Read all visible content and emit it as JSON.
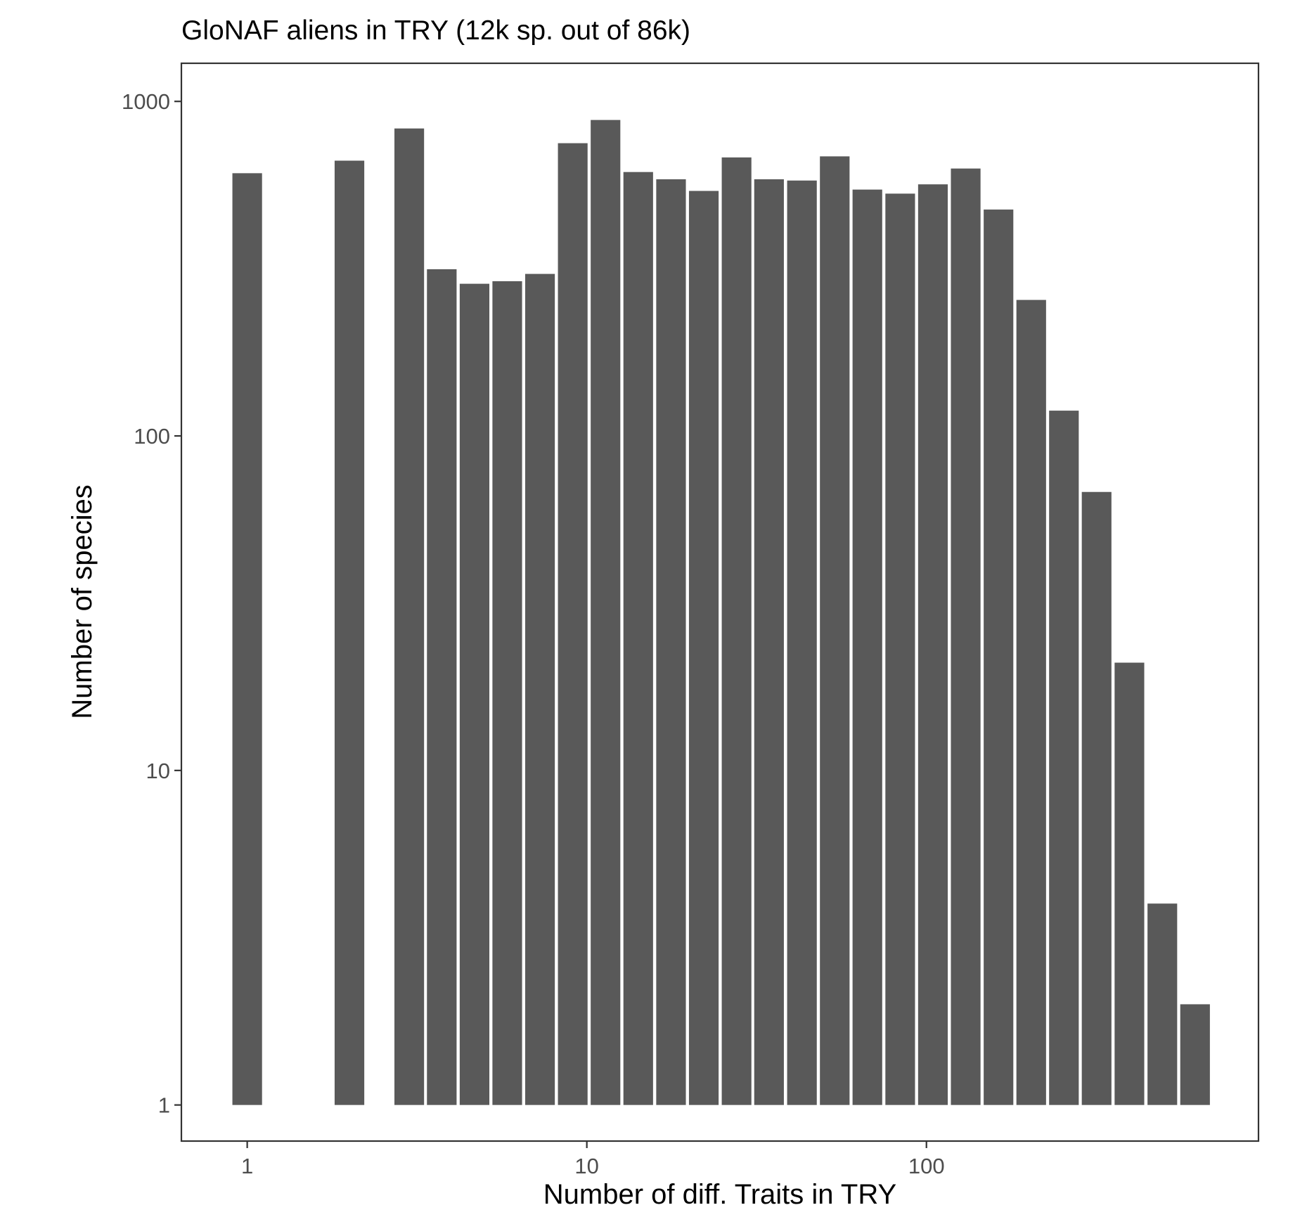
{
  "chart_data": {
    "type": "bar",
    "title": "GloNAF aliens in TRY (12k sp. out of 86k)",
    "xlabel": "Number of diff. Traits in TRY",
    "ylabel": "Number of species",
    "x_scale": "log10",
    "y_scale": "log10",
    "xlim": [
      0.64,
      950
    ],
    "ylim": [
      0.78,
      1300
    ],
    "x_ticks": [
      1,
      10,
      100
    ],
    "x_tick_labels": [
      "1",
      "10",
      "100"
    ],
    "y_ticks": [
      1,
      10,
      100,
      1000
    ],
    "y_tick_labels": [
      "1",
      "10",
      "100",
      "1000"
    ],
    "bar_color": "#595959",
    "panel_border_color": "#333333",
    "grid": false,
    "legend": "none",
    "bar_log_width": 0.0873,
    "x": [
      1,
      2,
      3,
      3.74,
      4.67,
      5.83,
      7.28,
      9.09,
      11.35,
      14.17,
      17.7,
      22.1,
      27.6,
      34.4,
      43,
      53.7,
      67,
      83.7,
      104.5,
      130.5,
      163,
      203.5,
      254,
      317,
      396,
      495,
      618
    ],
    "values": [
      610,
      665,
      830,
      315,
      285,
      290,
      305,
      750,
      880,
      615,
      585,
      540,
      680,
      585,
      580,
      685,
      545,
      530,
      565,
      630,
      475,
      255,
      119,
      68,
      21,
      4,
      2
    ]
  },
  "colors": {
    "background": "#ffffff",
    "bar": "#595959",
    "axis": "#333333",
    "tick_text": "#4d4d4d",
    "title_text": "#000000"
  }
}
